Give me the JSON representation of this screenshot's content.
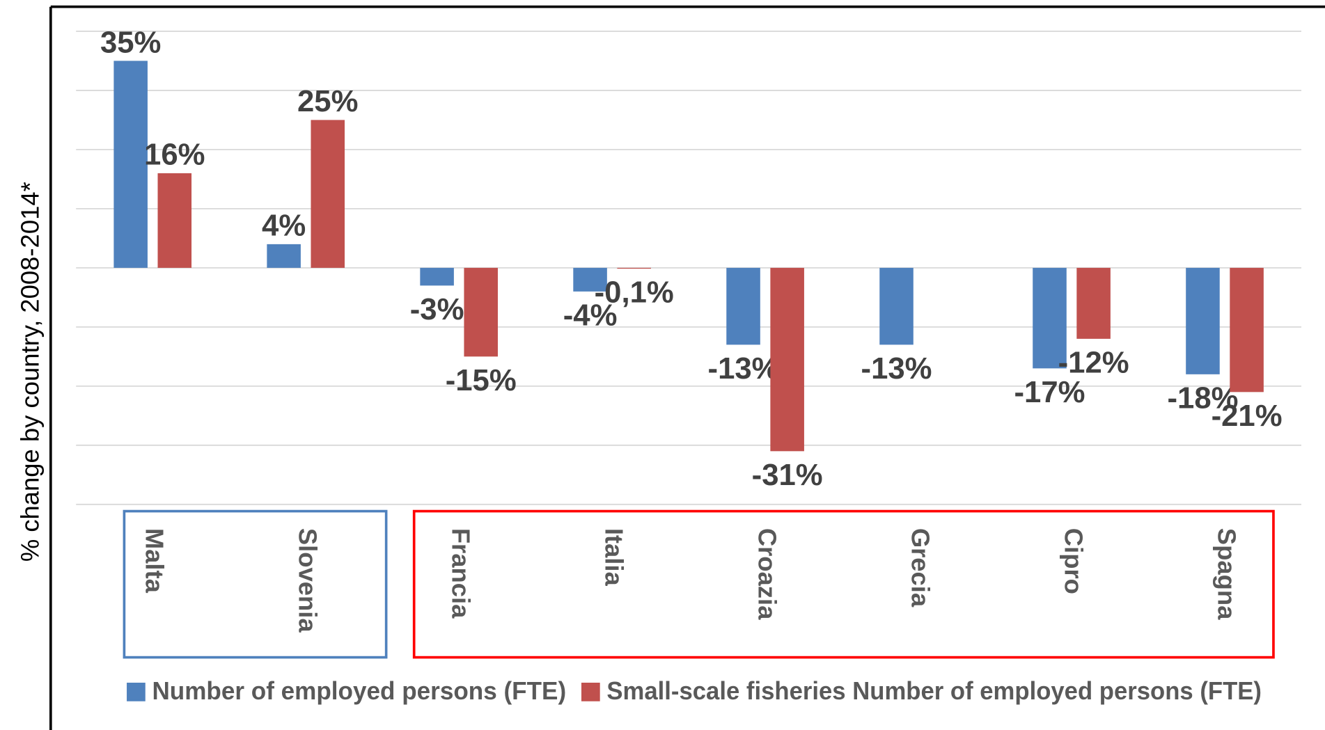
{
  "chart_data": {
    "type": "bar",
    "y_label": "% change by country, 2008-2014*",
    "categories": [
      "Malta",
      "Slovenia",
      "Francia",
      "Italia",
      "Croazia",
      "Grecia",
      "Cipro",
      "Spagna"
    ],
    "series": [
      {
        "name": "Number of employed persons (FTE)",
        "color": "#4f81bd",
        "values": [
          35,
          4,
          -3,
          -4,
          -13,
          -13,
          -17,
          -18
        ],
        "value_labels": [
          "35%",
          "4%",
          "-3%",
          "-4%",
          "-13%",
          "-13%",
          "-17%",
          "-18%"
        ]
      },
      {
        "name": "Small-scale fisheries Number of employed persons (FTE)",
        "color": "#c0504d",
        "values": [
          16,
          25,
          -15,
          -0.1,
          -31,
          null,
          -12,
          -21
        ],
        "value_labels": [
          "16%",
          "25%",
          "-15%",
          "-0,1%",
          "-31%",
          null,
          "-12%",
          "-21%"
        ]
      }
    ],
    "ylim": [
      -40,
      40
    ],
    "yticks": [
      -40,
      -30,
      -20,
      -10,
      0,
      10,
      20,
      30,
      40
    ],
    "grid": true
  }
}
